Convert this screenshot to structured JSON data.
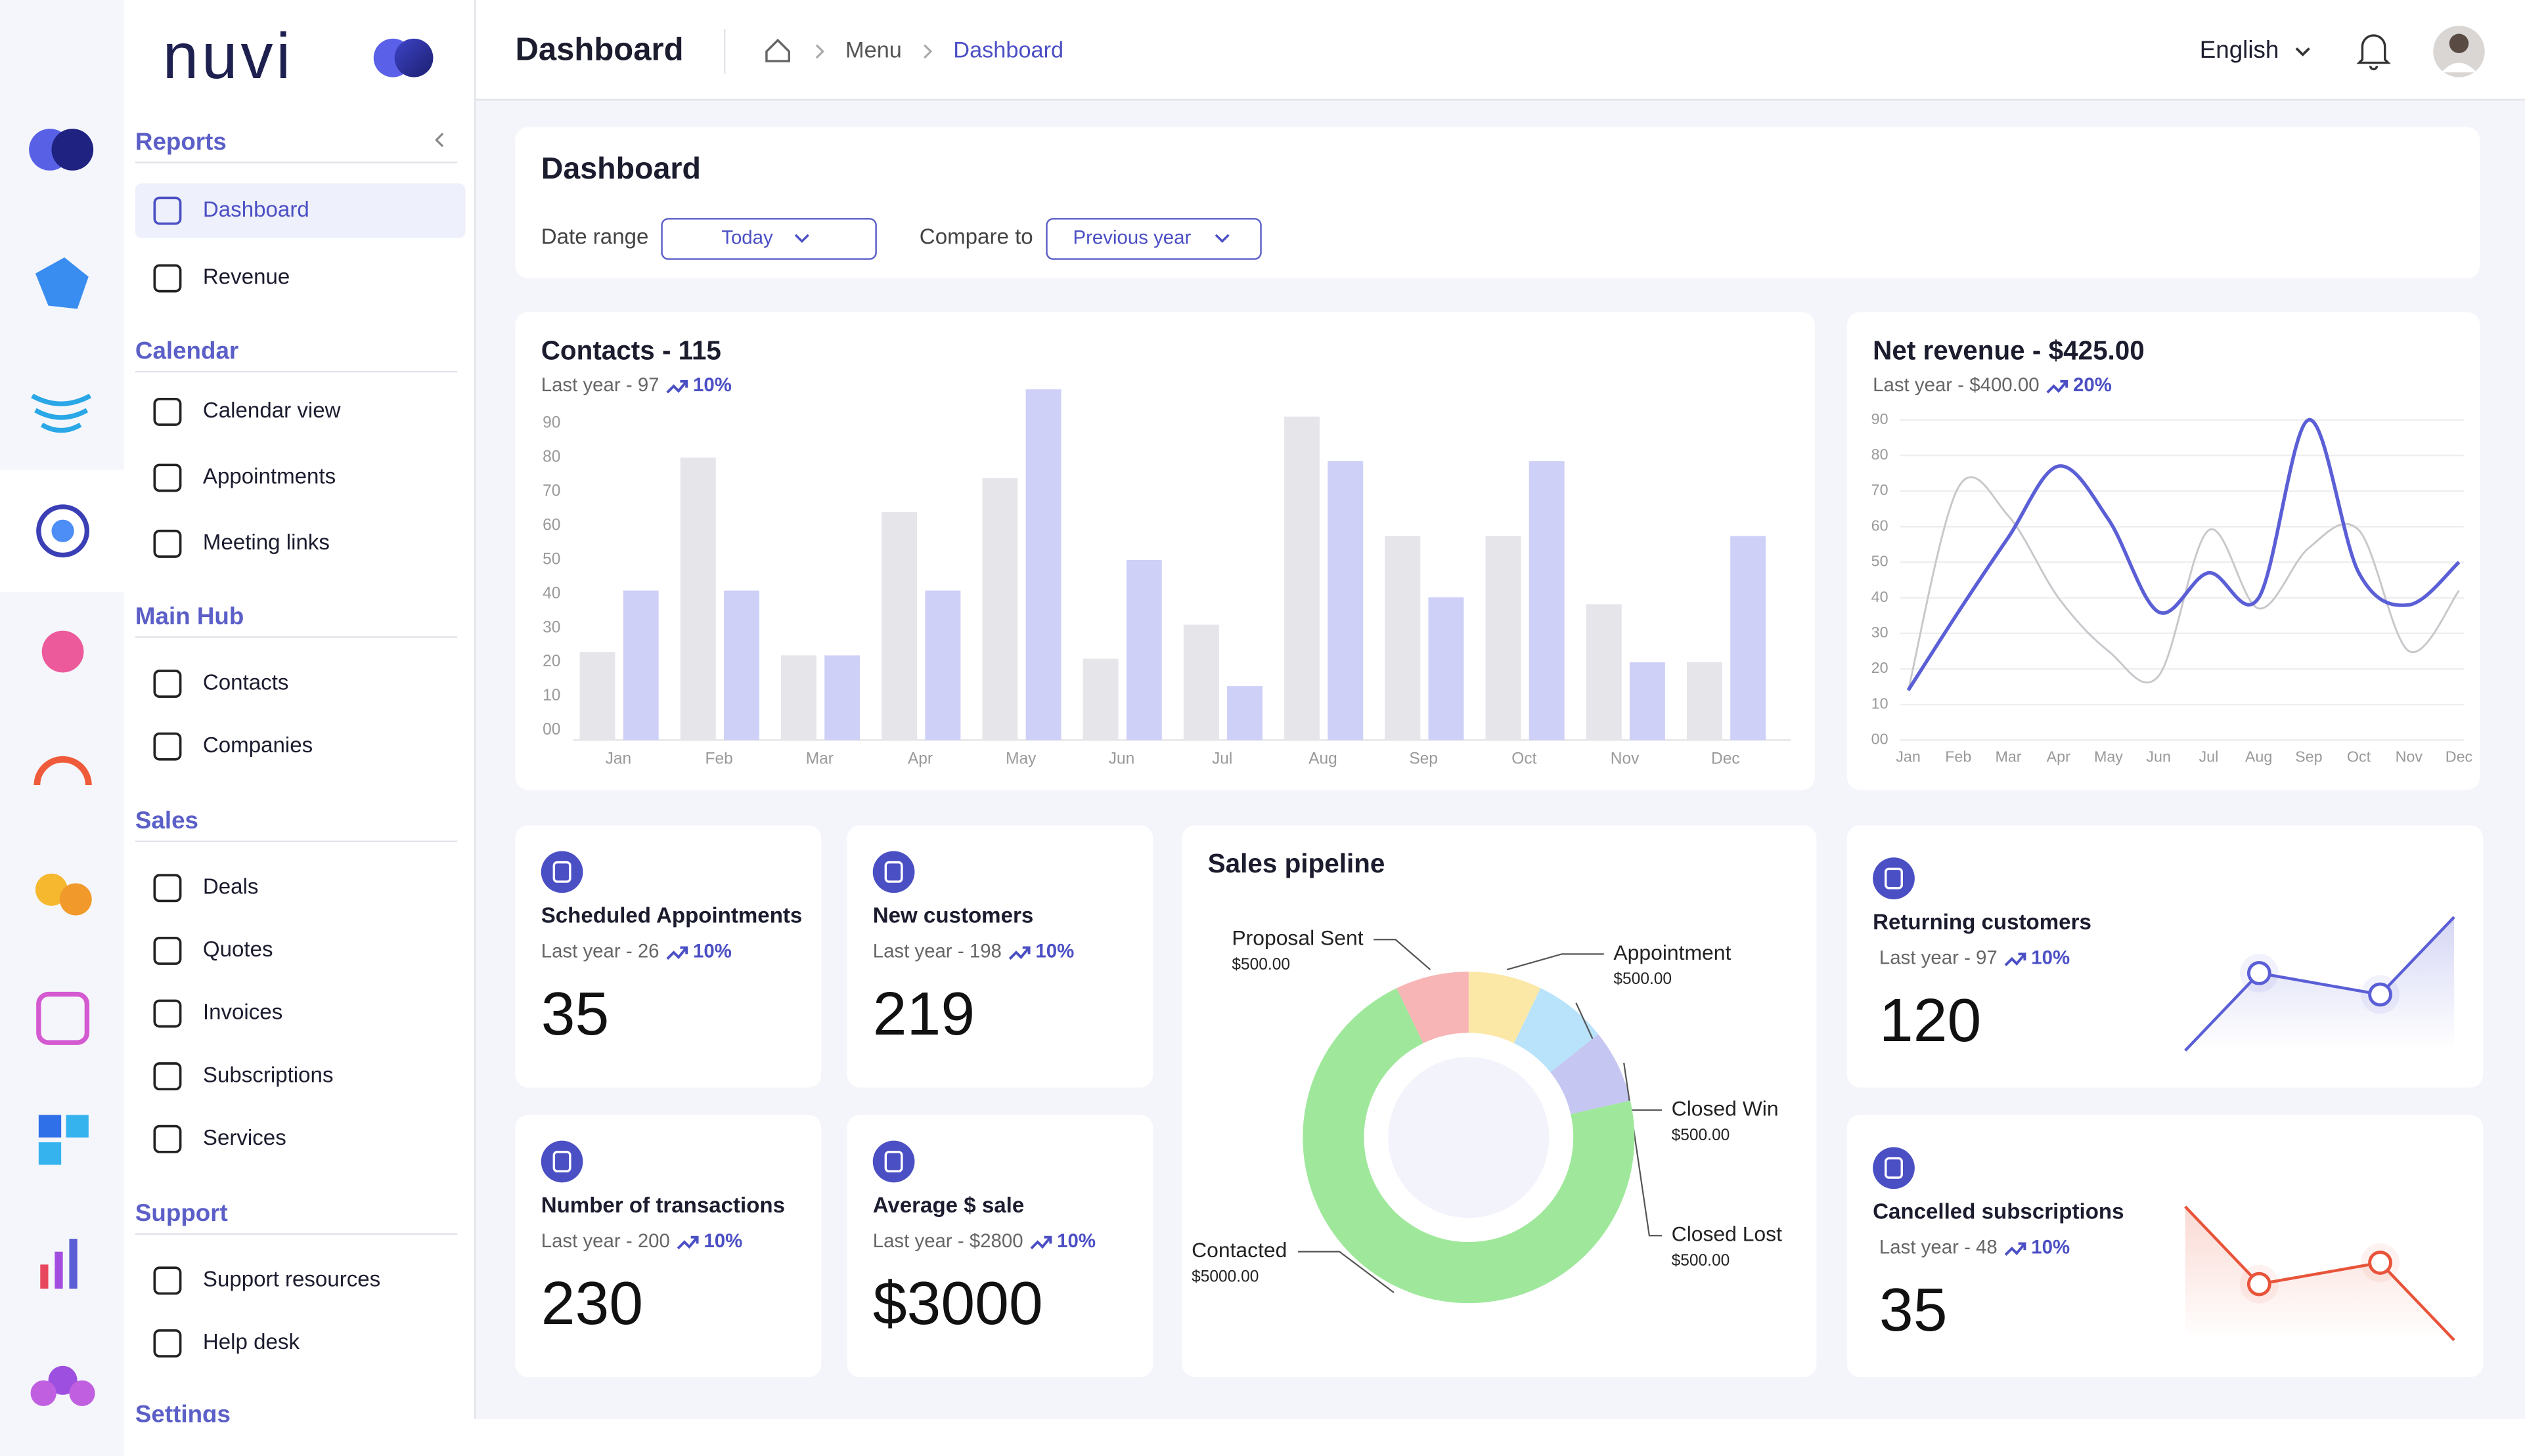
{
  "brand": "nuvi",
  "header": {
    "title": "Dashboard",
    "breadcrumb": [
      "Menu",
      "Dashboard"
    ],
    "language": "English"
  },
  "sidebar": {
    "sections": [
      {
        "title": "Reports",
        "items": [
          "Dashboard",
          "Revenue"
        ]
      },
      {
        "title": "Calendar",
        "items": [
          "Calendar view",
          "Appointments",
          "Meeting links"
        ]
      },
      {
        "title": "Main Hub",
        "items": [
          "Contacts",
          "Companies"
        ]
      },
      {
        "title": "Sales",
        "items": [
          "Deals",
          "Quotes",
          "Invoices",
          "Subscriptions",
          "Services"
        ]
      },
      {
        "title": "Support",
        "items": [
          "Support resources",
          "Help desk"
        ]
      },
      {
        "title": "Settings",
        "items": []
      }
    ]
  },
  "filters": {
    "title": "Dashboard",
    "date_range_label": "Date range",
    "date_range": "Today",
    "compare_label": "Compare to",
    "compare": "Previous year"
  },
  "chart_data": [
    {
      "type": "bar",
      "title": "Contacts - 115",
      "subtitle": "Last year - 97",
      "change": "10%",
      "categories": [
        "Jan",
        "Feb",
        "Mar",
        "Apr",
        "May",
        "Jun",
        "Jul",
        "Aug",
        "Sep",
        "Oct",
        "Nov",
        "Dec"
      ],
      "series": [
        {
          "color": "#e6e5ea",
          "values": [
            23,
            80,
            22,
            64,
            74,
            21,
            31,
            92,
            57,
            57,
            37,
            20
          ]
        },
        {
          "color": "#cfd0f7",
          "values": [
            41,
            41,
            22,
            41,
            100,
            50,
            13,
            79,
            39,
            79,
            20,
            57
          ]
        }
      ],
      "ylim": [
        0,
        100
      ],
      "yticks": [
        {
          "value": 0,
          "label": "00"
        },
        10,
        20,
        30,
        40,
        50,
        60,
        70,
        80,
        90
      ],
      "grid": false
    },
    {
      "type": "line",
      "title": "Net revenue - $425.00",
      "subtitle": "Last year - $400.00",
      "change": "20%",
      "categories": [
        "Jan",
        "Feb",
        "Mar",
        "Apr",
        "May",
        "Jun",
        "Jul",
        "Aug",
        "Sep",
        "Oct",
        "Nov",
        "Dec"
      ],
      "series": [
        {
          "color": "#c8c8cc",
          "values": [
            14,
            71,
            63,
            40,
            25,
            18,
            59,
            37,
            54,
            59,
            25,
            42
          ]
        },
        {
          "color": "#5b5fd6",
          "values": [
            14,
            36,
            57,
            77,
            62,
            36,
            47,
            40,
            90,
            47,
            38,
            50
          ]
        }
      ],
      "ylim": [
        0,
        90
      ],
      "yticks": [
        {
          "value": 0,
          "label": "00"
        },
        10,
        20,
        30,
        40,
        50,
        60,
        70,
        80,
        90
      ],
      "grid": true
    },
    {
      "type": "pie",
      "title": "Sales pipeline",
      "categories": [
        "Appointment",
        "Closed Win",
        "Closed Lost",
        "Contacted",
        "Proposal Sent"
      ],
      "values": [
        500,
        500,
        500,
        5000,
        500
      ],
      "value_labels": [
        "$500.00",
        "$500.00",
        "$500.00",
        "$5000.00",
        "$500.00"
      ],
      "colors": [
        "#fbe8a6",
        "#b8e3fb",
        "#c5c6f1",
        "#9fe89b",
        "#f8b5b5"
      ]
    }
  ],
  "cards": [
    {
      "title": "Scheduled Appointments",
      "subtitle": "Last year - 26",
      "change": "10%",
      "value": "35"
    },
    {
      "title": "New customers",
      "subtitle": "Last year - 198",
      "change": "10%",
      "value": "219"
    },
    {
      "title": "Number of transactions",
      "subtitle": "Last year - 200",
      "change": "10%",
      "value": "230"
    },
    {
      "title": "Average $ sale",
      "subtitle": "Last year - $2800",
      "change": "10%",
      "value": "$3000"
    },
    {
      "title": "Returning customers",
      "subtitle": "Last year - 97",
      "change": "10%",
      "value": "120",
      "sparkline": [
        0,
        58,
        42,
        100
      ],
      "color": "#5b5fd6"
    },
    {
      "title": "Cancelled subscriptions",
      "subtitle": "Last year - 48",
      "change": "10%",
      "value": "35",
      "sparkline": [
        100,
        42,
        58,
        0
      ],
      "color": "#e8543a"
    }
  ]
}
